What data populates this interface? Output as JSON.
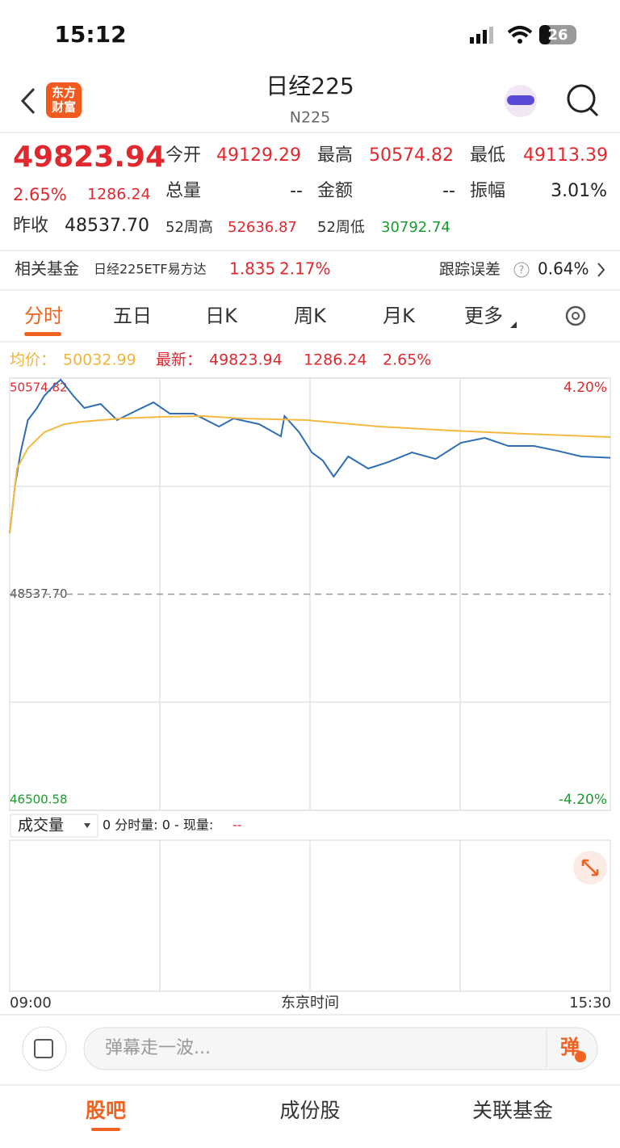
{
  "status_bar": {
    "time": "15:12",
    "battery": "26"
  },
  "header": {
    "logo": [
      "东方",
      "财富"
    ],
    "title": "日经225",
    "subtitle": "N225"
  },
  "quote": {
    "price": "49823.94",
    "change_pct": "2.65%",
    "change": "1286.24",
    "fields": [
      {
        "label": "今开",
        "value": "49129.29"
      },
      {
        "label": "最高",
        "value": "50574.82"
      },
      {
        "label": "最低",
        "value": "49113.39"
      },
      {
        "label": "总量",
        "value": "--"
      },
      {
        "label": "金额",
        "value": "--"
      },
      {
        "label": "振幅",
        "value": "3.01%"
      }
    ],
    "prev_close": {
      "label": "昨收",
      "value": "48537.70"
    },
    "high52": {
      "label": "52周高",
      "value": "52636.87"
    },
    "low52": {
      "label": "52周低",
      "value": "30792.74"
    }
  },
  "fund": {
    "label": "相关基金",
    "name": "日经225ETF易方达",
    "price": "1.835",
    "change": "2.17%",
    "tracking_label": "跟踪误差",
    "help": "?",
    "tracking": "0.64%"
  },
  "tabs": [
    "分时",
    "五日",
    "日K",
    "周K",
    "月K",
    "更多"
  ],
  "legend": {
    "avg_label": "均价：",
    "avg": "50032.99",
    "last_label": "最新：",
    "last": "49823.94",
    "change": "1286.24",
    "pct": "2.65%"
  },
  "chart_data": {
    "type": "line",
    "xlim": [
      0,
      330
    ],
    "ylim": [
      46500.58,
      50574.82
    ],
    "yticks": [
      46500.58,
      {
        "value": 48537.7,
        "label": "48537.70"
      },
      50574.82
    ],
    "y2lim": [
      -4.2,
      4.2
    ],
    "y2ticks": [
      {
        "value": -4.2,
        "label": "-4.20%"
      },
      {
        "value": 4.2,
        "label": "4.20%"
      }
    ],
    "series": [
      {
        "color": "#2f6db5",
        "x": [
          0,
          3,
          6,
          10,
          15,
          19,
          24,
          28,
          35,
          41,
          50,
          59,
          68,
          79,
          88,
          101,
          115,
          123,
          137,
          149,
          151,
          159,
          166,
          172,
          178,
          186,
          197,
          208,
          221,
          234,
          248,
          261,
          274,
          288,
          301,
          314,
          330
        ],
        "values": [
          49112,
          49570,
          49874,
          50179,
          50293,
          50407,
          50499,
          50560,
          50407,
          50293,
          50331,
          50179,
          50255,
          50346,
          50240,
          50240,
          50118,
          50194,
          50141,
          50026,
          50217,
          50065,
          49874,
          49798,
          49646,
          49836,
          49722,
          49783,
          49874,
          49813,
          49965,
          50011,
          49935,
          49935,
          49889,
          49836,
          49824
        ]
      },
      {
        "color": "#f5b942",
        "x": [
          0,
          4,
          10,
          19,
          30,
          39,
          61,
          83,
          106,
          128,
          163,
          203,
          243,
          283,
          330
        ],
        "values": [
          49113,
          49722,
          49912,
          50065,
          50141,
          50163,
          50194,
          50209,
          50217,
          50194,
          50179,
          50118,
          50080,
          50049,
          50019
        ]
      }
    ]
  },
  "volume": {
    "label": "成交量",
    "text": "0 分时量: 0 - 现量:",
    "now": "--"
  },
  "x_axis": {
    "start": "09:00",
    "label": "东京时间",
    "end": "15:30"
  },
  "input": {
    "placeholder": "弹幕走一波...",
    "button": "弹"
  },
  "bottom_tabs": [
    "股吧",
    "成份股",
    "关联基金"
  ]
}
